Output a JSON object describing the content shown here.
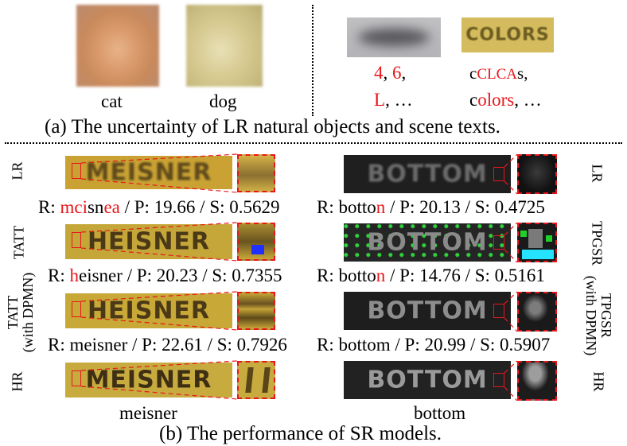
{
  "part_a": {
    "natural_labels": [
      "cat",
      "dog"
    ],
    "scene_text_image_word": "COLORS",
    "candidates_left": [
      [
        {
          "t": "4",
          "red": true
        },
        {
          "t": ", ",
          "red": false
        },
        {
          "t": "6",
          "red": true
        },
        {
          "t": ",",
          "red": false
        }
      ],
      [
        {
          "t": "L",
          "red": true
        },
        {
          "t": ", …",
          "red": false
        }
      ]
    ],
    "candidates_right": [
      [
        {
          "t": "c",
          "red": false
        },
        {
          "t": "CLCA",
          "red": true
        },
        {
          "t": "s",
          "red": false
        },
        {
          "t": ",",
          "red": false
        }
      ],
      [
        {
          "t": "c",
          "red": false
        },
        {
          "t": "olors",
          "red": true
        },
        {
          "t": ", …",
          "red": false
        }
      ]
    ],
    "caption": "(a) The uncertainty of LR natural objects and scene texts."
  },
  "part_b": {
    "left": {
      "words": [
        "MEISNER",
        "HEISNER",
        "HEISNER",
        "MEISNER"
      ],
      "row_labels": [
        [
          "LR"
        ],
        [
          "TATT"
        ],
        [
          "TATT",
          "(with DPMN)"
        ],
        [
          "HR"
        ]
      ],
      "results": [
        [
          {
            "t": "R: ",
            "red": false
          },
          {
            "t": "mci",
            "red": true
          },
          {
            "t": "sn",
            "red": false
          },
          {
            "t": "ea",
            "red": true
          },
          {
            "t": " / P: 19.66 / S: 0.5629",
            "red": false
          }
        ],
        [
          {
            "t": "R: ",
            "red": false
          },
          {
            "t": "h",
            "red": true
          },
          {
            "t": "eisner / P: 20.23 / S: 0.7355",
            "red": false
          }
        ],
        [
          {
            "t": "R: meisner / P: 22.61 / S: 0.7926",
            "red": false
          }
        ]
      ],
      "ground_truth": "meisner"
    },
    "right": {
      "words": [
        "BOTTOM",
        "BOTTOM",
        "BOTTOM",
        "BOTTOM"
      ],
      "row_labels": [
        [
          "LR"
        ],
        [
          "TPGSR"
        ],
        [
          "TPGSR",
          "(with DPMN)"
        ],
        [
          "HR"
        ]
      ],
      "results": [
        [
          {
            "t": "R: botto",
            "red": false
          },
          {
            "t": "n",
            "red": true
          },
          {
            "t": " / P: 20.13 / S: 0.4725",
            "red": false
          }
        ],
        [
          {
            "t": "R: botto",
            "red": false
          },
          {
            "t": "n",
            "red": true
          },
          {
            "t": " / P: 14.76 / S: 0.5161",
            "red": false
          }
        ],
        [
          {
            "t": "R: bottom / P: 20.99 / S: 0.5907",
            "red": false
          }
        ]
      ],
      "ground_truth": "bottom"
    },
    "caption": "(b) The performance of SR models."
  }
}
